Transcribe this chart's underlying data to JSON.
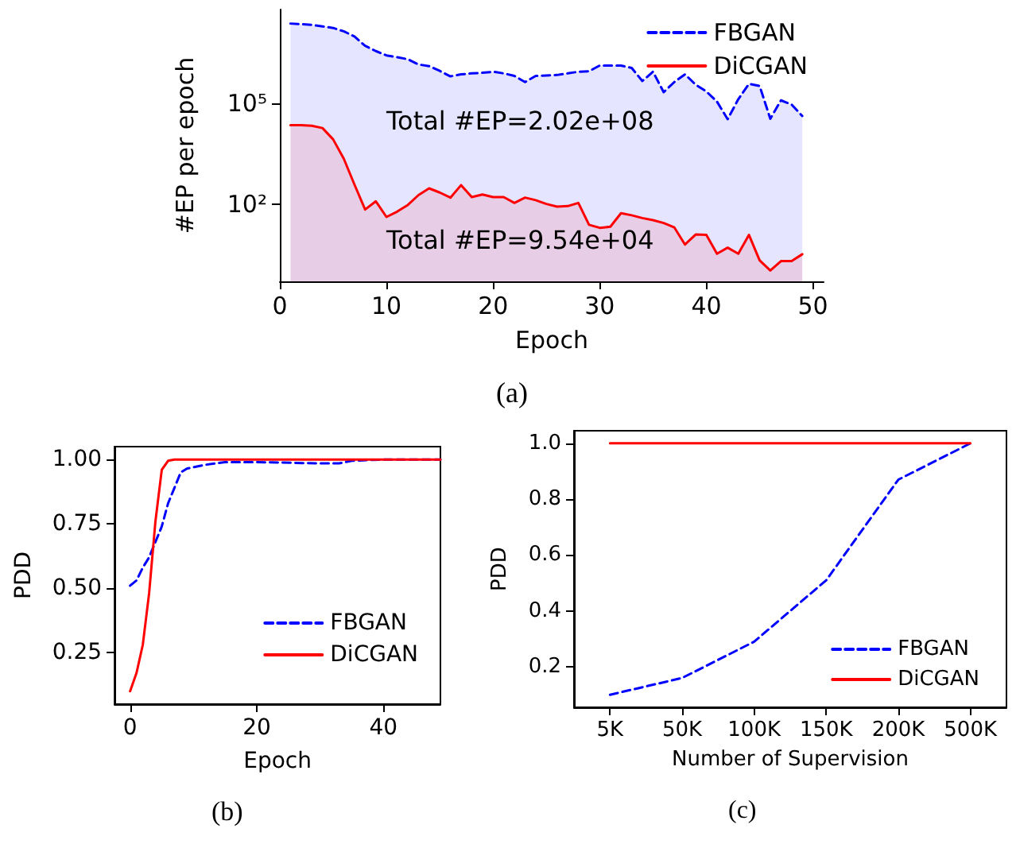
{
  "chart_data": [
    {
      "type": "area",
      "xlabel": "Epoch",
      "ylabel": "#EP per epoch",
      "log": true,
      "legend": "top right",
      "marker": "none",
      "x": [
        1,
        2,
        3,
        4,
        5,
        6,
        7,
        8,
        9,
        10,
        11,
        12,
        13,
        14,
        15,
        16,
        17,
        18,
        19,
        20,
        21,
        22,
        23,
        24,
        25,
        26,
        27,
        28,
        29,
        30,
        31,
        32,
        33,
        34,
        35,
        36,
        37,
        38,
        39,
        40,
        41,
        42,
        43,
        44,
        45,
        46,
        47,
        48,
        49
      ],
      "xlim": [
        0,
        51
      ],
      "xticks": [
        0,
        10,
        20,
        30,
        40,
        50
      ],
      "ylim": [
        0.5,
        60000000
      ],
      "yticks": [
        {
          "value": 100,
          "label": "10²"
        },
        {
          "value": 100000,
          "label": "10⁵"
        }
      ],
      "series": [
        {
          "name": "FBGAN",
          "color": "#0000ff",
          "line_style": "dashed",
          "values": [
            23000000,
            22000000,
            21000000,
            19000000,
            17000000,
            13500000,
            9500000,
            5000000,
            3500000,
            2600000,
            2300000,
            2000000,
            1400000,
            1250000,
            900000,
            620000,
            710000,
            760000,
            790000,
            850000,
            760000,
            640000,
            420000,
            640000,
            660000,
            680000,
            760000,
            850000,
            880000,
            1300000,
            1300000,
            1300000,
            1100000,
            450000,
            850000,
            210000,
            420000,
            710000,
            350000,
            220000,
            110000,
            33000,
            130000,
            370000,
            320000,
            34000,
            120000,
            90000,
            41000
          ]
        },
        {
          "name": "DiCGAN",
          "color": "#ff0000",
          "line_style": "solid",
          "values": [
            22000,
            22000,
            21000,
            18000,
            8300,
            2200,
            375,
            68,
            120,
            41,
            59,
            93,
            183,
            290,
            218,
            154,
            363,
            160,
            190,
            160,
            160,
            107,
            154,
            129,
            100,
            83,
            86,
            107,
            24,
            19.5,
            21,
            53,
            46,
            38,
            33,
            27,
            20,
            6.2,
            12.3,
            12,
            3.3,
            5,
            3.3,
            12,
            2.1,
            1.05,
            2,
            2,
            3.2
          ]
        }
      ],
      "annotations": [
        "Total #EP=2.02e+08",
        "Total #EP=9.54e+04",
        "(a)"
      ]
    },
    {
      "type": "line",
      "xlabel": "Epoch",
      "ylabel": "PDD",
      "legend": "bottom right",
      "marker": "none",
      "xlim": [
        -2.45,
        49
      ],
      "xticks": [
        0,
        20,
        40
      ],
      "ylim": [
        0.05,
        1.05
      ],
      "yticks": [
        0.25,
        {
          "value": 0.5,
          "label": "0.50"
        },
        0.75,
        {
          "value": 1,
          "label": "1.00"
        }
      ],
      "series": [
        {
          "name": "FBGAN",
          "color": "#0000ff",
          "line_style": "dashed",
          "x": [
            0,
            1,
            2,
            3,
            4,
            5,
            6,
            7,
            8,
            9,
            10,
            12,
            15,
            20,
            30,
            33,
            35,
            40,
            49
          ],
          "values": [
            0.51,
            0.53,
            0.58,
            0.62,
            0.68,
            0.74,
            0.83,
            0.89,
            0.95,
            0.965,
            0.97,
            0.98,
            0.99,
            0.99,
            0.985,
            0.985,
            0.995,
            1,
            1
          ]
        },
        {
          "name": "DiCGAN",
          "color": "#ff0000",
          "line_style": "solid",
          "x": [
            0,
            1,
            2,
            3,
            4,
            5,
            6,
            7,
            10,
            20,
            30,
            40,
            49
          ],
          "values": [
            0.1,
            0.17,
            0.28,
            0.48,
            0.76,
            0.96,
            0.995,
            1,
            1,
            1,
            1,
            1,
            1
          ]
        }
      ],
      "annotations": [
        "(b)"
      ]
    },
    {
      "type": "line",
      "xlabel": "Number of Supervision",
      "ylabel": "PDD",
      "legend": "bottom right",
      "marker": "none",
      "categories": [
        "5K",
        "50K",
        "100K",
        "150K",
        "200K",
        "500K"
      ],
      "ylim": [
        0.055,
        1.045
      ],
      "yticks": [
        0.2,
        0.4,
        0.6,
        0.8,
        {
          "value": 1,
          "label": "1.0"
        }
      ],
      "series": [
        {
          "name": "FBGAN",
          "color": "#0000ff",
          "line_style": "dashed",
          "values": [
            0.1,
            0.16,
            0.29,
            0.51,
            0.87,
            1
          ]
        },
        {
          "name": "DiCGAN",
          "color": "#ff0000",
          "line_style": "solid",
          "values": [
            1,
            1,
            1,
            1,
            1,
            1
          ]
        }
      ],
      "annotations": [
        "(c)"
      ]
    }
  ]
}
